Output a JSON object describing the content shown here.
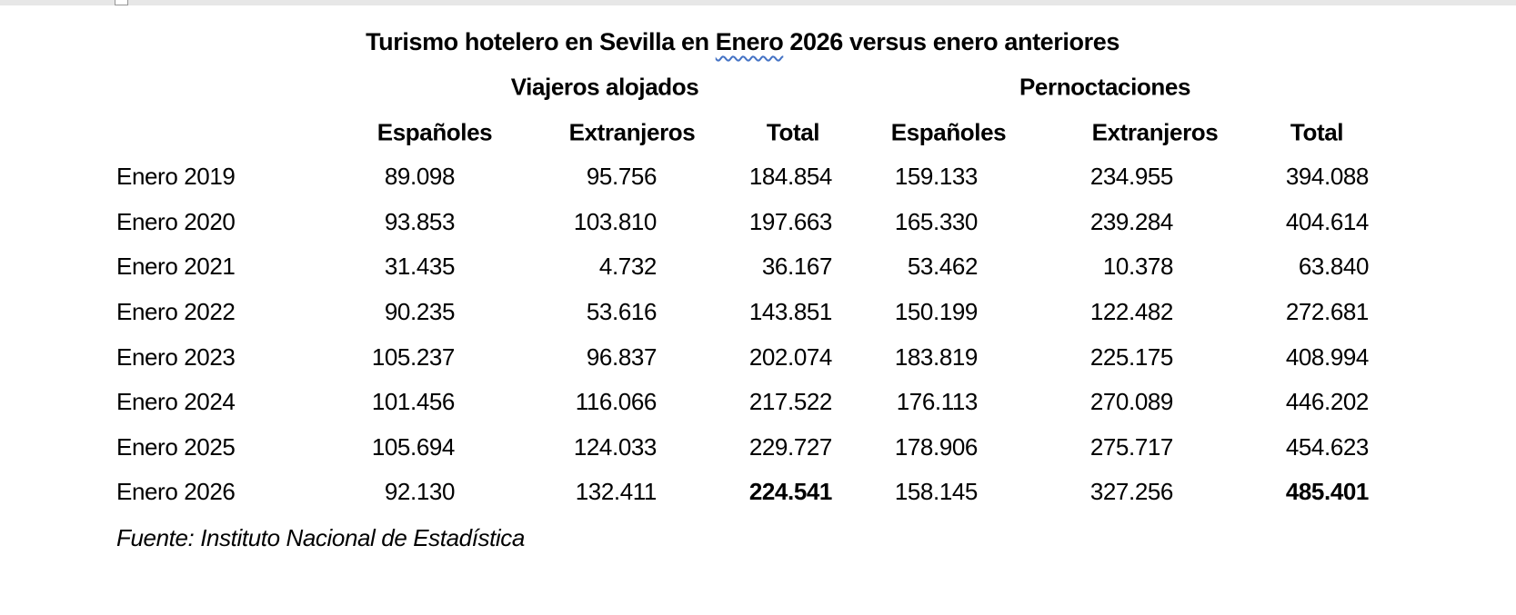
{
  "title": {
    "full": "Turismo hotelero en Sevilla en Enero 2026 versus enero anteriores",
    "prefix": "Turismo hotelero en Sevilla en ",
    "flagged_word": "Enero",
    "suffix": " 2026 versus enero anteriores"
  },
  "source_note": "Fuente: Instituto Nacional de Estadística",
  "table": {
    "group_headers": [
      "Viajeros alojados",
      "Pernoctaciones"
    ],
    "column_headers": [
      "Españoles",
      "Extranjeros",
      "Total",
      "Españoles",
      "Extranjeros",
      "Total"
    ],
    "rows": [
      {
        "label": "Enero 2019",
        "values": [
          "89.098",
          "95.756",
          "184.854",
          "159.133",
          "234.955",
          "394.088"
        ],
        "bold_value_indices": []
      },
      {
        "label": "Enero 2020",
        "values": [
          "93.853",
          "103.810",
          "197.663",
          "165.330",
          "239.284",
          "404.614"
        ],
        "bold_value_indices": []
      },
      {
        "label": "Enero 2021",
        "values": [
          "31.435",
          "4.732",
          "36.167",
          "53.462",
          "10.378",
          "63.840"
        ],
        "bold_value_indices": []
      },
      {
        "label": "Enero 2022",
        "values": [
          "90.235",
          "53.616",
          "143.851",
          "150.199",
          "122.482",
          "272.681"
        ],
        "bold_value_indices": []
      },
      {
        "label": "Enero 2023",
        "values": [
          "105.237",
          "96.837",
          "202.074",
          "183.819",
          "225.175",
          "408.994"
        ],
        "bold_value_indices": []
      },
      {
        "label": "Enero 2024",
        "values": [
          "101.456",
          "116.066",
          "217.522",
          "176.113",
          "270.089",
          "446.202"
        ],
        "bold_value_indices": []
      },
      {
        "label": "Enero 2025",
        "values": [
          "105.694",
          "124.033",
          "229.727",
          "178.906",
          "275.717",
          "454.623"
        ],
        "bold_value_indices": []
      },
      {
        "label": "Enero 2026",
        "values": [
          "92.130",
          "132.411",
          "224.541",
          "158.145",
          "327.256",
          "485.401"
        ],
        "bold_value_indices": [
          2,
          5
        ]
      }
    ]
  },
  "colors": {
    "spellcheck_underline": "#4472C4",
    "chrome_strip": "#E7E7E7",
    "text": "#000000"
  }
}
